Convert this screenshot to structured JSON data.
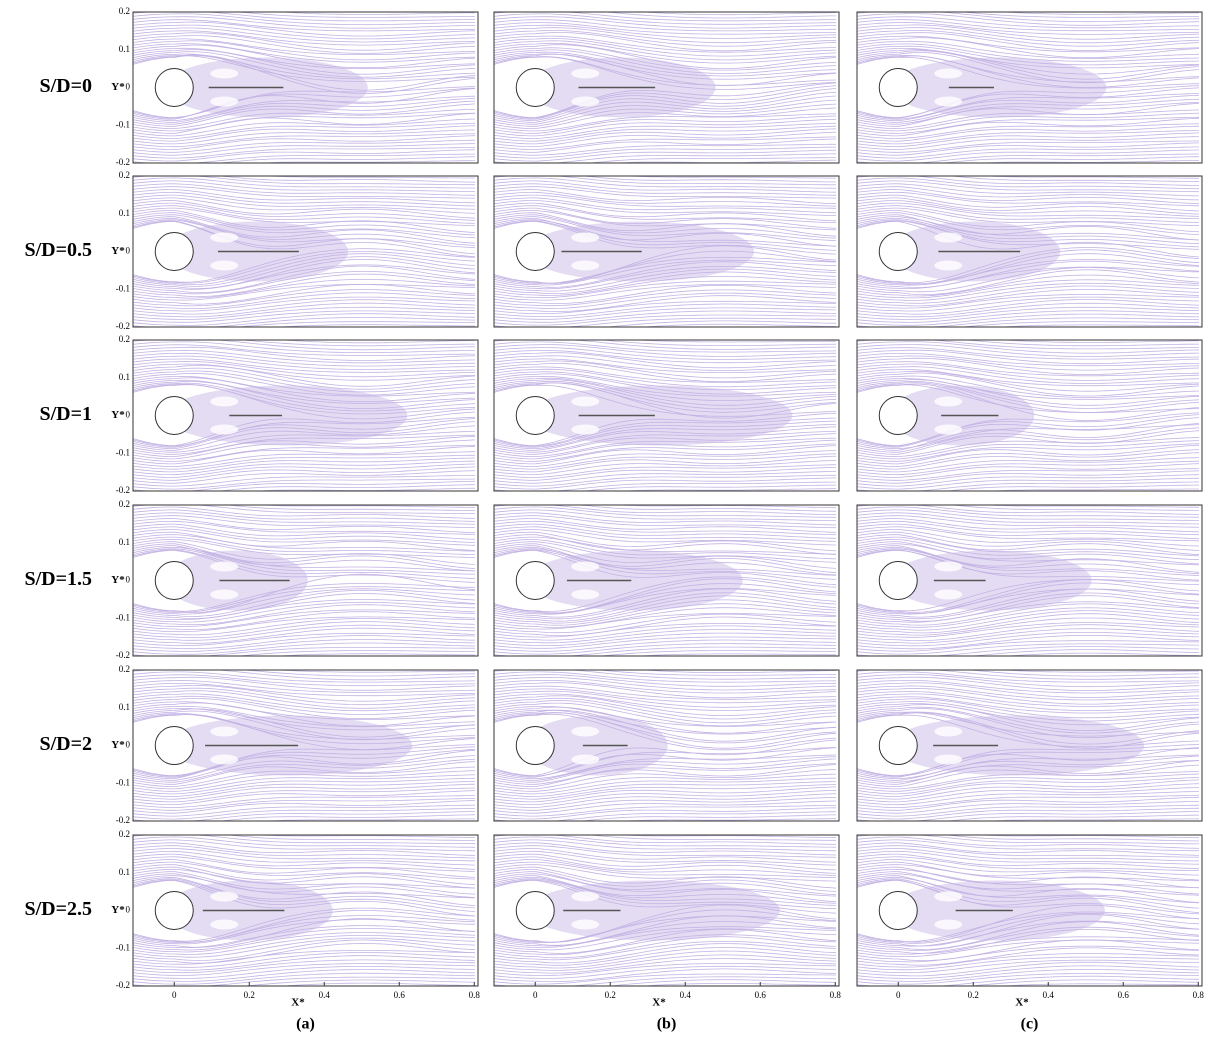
{
  "row_labels": [
    "S/D=0",
    "S/D=0.5",
    "S/D=1",
    "S/D=1.5",
    "S/D=2",
    "S/D=2.5"
  ],
  "column_labels": [
    "(a)",
    "(b)",
    "(c)"
  ],
  "y_axis_label": "Y*",
  "x_axis_label": "X*",
  "xlim": [
    -0.11,
    0.81
  ],
  "ylim": [
    -0.2,
    0.2
  ],
  "xticks": [
    0,
    0.2,
    0.4,
    0.6,
    0.8
  ],
  "yticks": [
    0.2,
    0.1,
    0,
    -0.1,
    -0.2
  ]
}
